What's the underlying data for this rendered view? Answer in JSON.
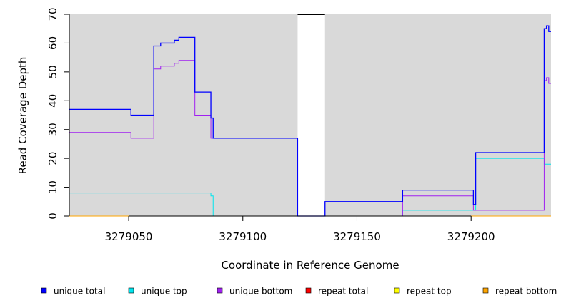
{
  "chart_data": {
    "type": "line",
    "title": "",
    "xlabel": "Coordinate in Reference Genome",
    "ylabel": "Read Coverage Depth",
    "xlim": [
      3279024,
      3279235
    ],
    "ylim": [
      0,
      70
    ],
    "x_ticks": [
      3279050,
      3279100,
      3279150,
      3279200
    ],
    "y_ticks": [
      0,
      10,
      20,
      30,
      40,
      50,
      60,
      70
    ],
    "grid": false,
    "background": "#d9d9d9",
    "gap_region": [
      3279124,
      3279136
    ],
    "legend_position": "bottom",
    "series": [
      {
        "name": "unique total",
        "color": "#0000ff",
        "points": [
          [
            3279024,
            37
          ],
          [
            3279051,
            37
          ],
          [
            3279051,
            35
          ],
          [
            3279061,
            35
          ],
          [
            3279061,
            59
          ],
          [
            3279064,
            59
          ],
          [
            3279064,
            60
          ],
          [
            3279070,
            60
          ],
          [
            3279070,
            61
          ],
          [
            3279072,
            61
          ],
          [
            3279072,
            62
          ],
          [
            3279079,
            62
          ],
          [
            3279079,
            43
          ],
          [
            3279086,
            43
          ],
          [
            3279086,
            34
          ],
          [
            3279087,
            34
          ],
          [
            3279087,
            27
          ],
          [
            3279124,
            27
          ],
          [
            3279124,
            0
          ],
          [
            3279136,
            0
          ],
          [
            3279136,
            5
          ],
          [
            3279170,
            5
          ],
          [
            3279170,
            9
          ],
          [
            3279201,
            9
          ],
          [
            3279201,
            4
          ],
          [
            3279202,
            4
          ],
          [
            3279202,
            22
          ],
          [
            3279232,
            22
          ],
          [
            3279232,
            65
          ],
          [
            3279233,
            65
          ],
          [
            3279233,
            66
          ],
          [
            3279234,
            66
          ],
          [
            3279234,
            64
          ],
          [
            3279235,
            64
          ]
        ]
      },
      {
        "name": "unique top",
        "color": "#00e5ee",
        "points": [
          [
            3279024,
            8
          ],
          [
            3279086,
            8
          ],
          [
            3279086,
            7
          ],
          [
            3279087,
            7
          ],
          [
            3279087,
            0
          ],
          [
            3279170,
            0
          ],
          [
            3279170,
            2
          ],
          [
            3279202,
            2
          ],
          [
            3279202,
            20
          ],
          [
            3279232,
            20
          ],
          [
            3279232,
            18
          ],
          [
            3279235,
            18
          ]
        ]
      },
      {
        "name": "unique bottom",
        "color": "#a020f0",
        "points": [
          [
            3279024,
            29
          ],
          [
            3279051,
            29
          ],
          [
            3279051,
            27
          ],
          [
            3279061,
            27
          ],
          [
            3279061,
            51
          ],
          [
            3279064,
            51
          ],
          [
            3279064,
            52
          ],
          [
            3279070,
            52
          ],
          [
            3279070,
            53
          ],
          [
            3279072,
            53
          ],
          [
            3279072,
            54
          ],
          [
            3279079,
            54
          ],
          [
            3279079,
            35
          ],
          [
            3279086,
            35
          ],
          [
            3279086,
            27
          ],
          [
            3279124,
            27
          ],
          [
            3279124,
            0
          ],
          [
            3279170,
            0
          ],
          [
            3279170,
            7
          ],
          [
            3279201,
            7
          ],
          [
            3279201,
            2
          ],
          [
            3279232,
            2
          ],
          [
            3279232,
            47
          ],
          [
            3279233,
            47
          ],
          [
            3279233,
            48
          ],
          [
            3279234,
            48
          ],
          [
            3279234,
            46
          ],
          [
            3279235,
            46
          ]
        ]
      },
      {
        "name": "repeat total",
        "color": "#ff0000",
        "points": [
          [
            3279024,
            0
          ],
          [
            3279235,
            0
          ]
        ]
      },
      {
        "name": "repeat top",
        "color": "#ffff00",
        "points": [
          [
            3279024,
            0
          ],
          [
            3279235,
            0
          ]
        ]
      },
      {
        "name": "repeat bottom",
        "color": "#ffa500",
        "points": [
          [
            3279024,
            0
          ],
          [
            3279235,
            0
          ]
        ]
      }
    ]
  }
}
